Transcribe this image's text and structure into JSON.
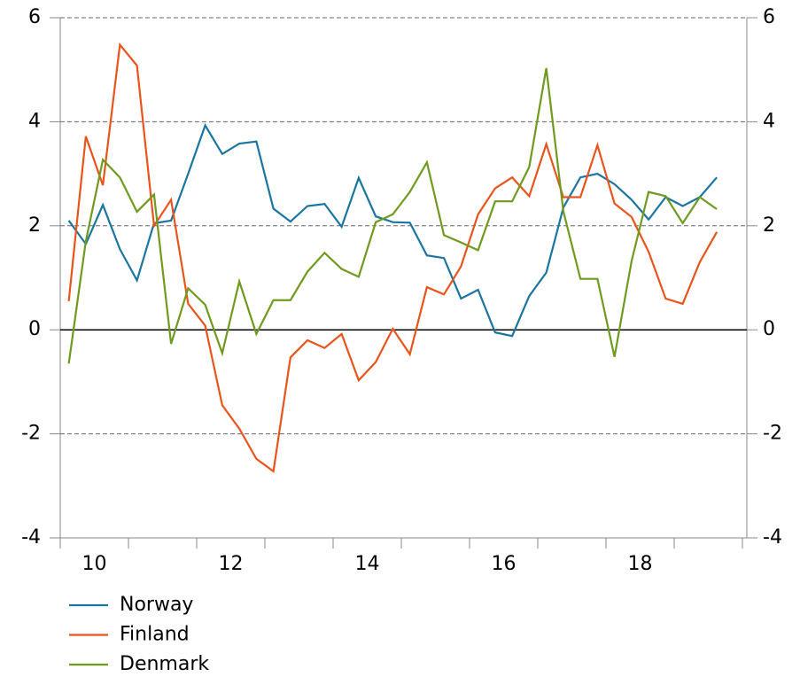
{
  "chart_data": {
    "type": "line",
    "x": [
      10.125,
      10.375,
      10.625,
      10.875,
      11.125,
      11.375,
      11.625,
      11.875,
      12.125,
      12.375,
      12.625,
      12.875,
      13.125,
      13.375,
      13.625,
      13.875,
      14.125,
      14.375,
      14.625,
      14.875,
      15.125,
      15.375,
      15.625,
      15.875,
      16.125,
      16.375,
      16.625,
      16.875,
      17.125,
      17.375,
      17.625,
      17.875,
      18.125,
      18.375,
      18.625,
      18.875,
      19.125,
      19.375,
      19.625
    ],
    "series": [
      {
        "name": "Norway",
        "color": "#1a75a0",
        "values": [
          2.1,
          1.65,
          2.4,
          1.55,
          0.95,
          2.05,
          2.1,
          3.0,
          3.93,
          3.38,
          3.58,
          3.62,
          2.33,
          2.08,
          2.38,
          2.42,
          1.98,
          2.92,
          2.18,
          2.07,
          2.06,
          1.43,
          1.38,
          0.6,
          0.77,
          -0.05,
          -0.12,
          0.65,
          1.1,
          2.35,
          2.93,
          3.0,
          2.8,
          2.5,
          2.12,
          2.55,
          2.38,
          2.55,
          2.93
        ]
      },
      {
        "name": "Finland",
        "color": "#e8541c",
        "values": [
          0.55,
          3.72,
          2.78,
          5.48,
          5.08,
          2.0,
          2.5,
          0.5,
          0.08,
          -1.45,
          -1.9,
          -2.48,
          -2.72,
          -0.53,
          -0.2,
          -0.35,
          -0.08,
          -0.97,
          -0.62,
          0.02,
          -0.47,
          0.82,
          0.68,
          1.22,
          2.22,
          2.72,
          2.93,
          2.57,
          3.57,
          2.55,
          2.55,
          3.55,
          2.43,
          2.17,
          1.5,
          0.6,
          0.5,
          1.3,
          1.88
        ]
      },
      {
        "name": "Denmark",
        "color": "#6e9a1e",
        "values": [
          -0.65,
          1.7,
          3.27,
          2.93,
          2.27,
          2.6,
          -0.27,
          0.8,
          0.48,
          -0.45,
          0.93,
          -0.08,
          0.57,
          0.57,
          1.12,
          1.48,
          1.17,
          1.02,
          2.07,
          2.22,
          2.65,
          3.22,
          1.82,
          1.68,
          1.53,
          2.47,
          2.47,
          3.13,
          5.03,
          2.28,
          0.98,
          0.98,
          -0.52,
          1.32,
          2.65,
          2.57,
          2.05,
          2.55,
          2.32
        ]
      }
    ],
    "xlim": [
      10,
      20.065
    ],
    "xticks": [
      {
        "value": 10.5,
        "label": "10"
      },
      {
        "value": 12.5,
        "label": "12"
      },
      {
        "value": 14.5,
        "label": "14"
      },
      {
        "value": 16.5,
        "label": "16"
      },
      {
        "value": 18.5,
        "label": "18"
      }
    ],
    "xminorticks": [
      10,
      11,
      12,
      13,
      14,
      15,
      16,
      17,
      18,
      19,
      20
    ],
    "ylim": [
      -4,
      6
    ],
    "yticks": [
      -4,
      -2,
      0,
      2,
      4,
      6
    ],
    "y2lim": [
      -4,
      6
    ],
    "y2ticks": [
      -4,
      -2,
      0,
      2,
      4,
      6
    ],
    "grid": true,
    "legend": "bottom-left"
  }
}
